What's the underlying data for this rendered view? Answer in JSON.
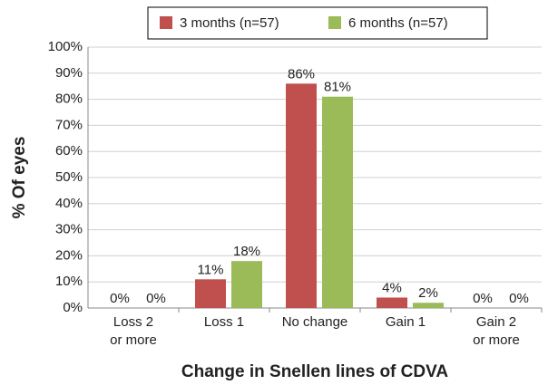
{
  "chart_data": {
    "type": "bar",
    "categories": [
      "Loss 2\nor more",
      "Loss 1",
      "No change",
      "Gain 1",
      "Gain 2\nor more"
    ],
    "series": [
      {
        "name": "3 months (n=57)",
        "color": "#c0504d",
        "values": [
          0,
          11,
          86,
          4,
          0
        ],
        "value_labels": [
          "0%",
          "11%",
          "86%",
          "4%",
          "0%"
        ]
      },
      {
        "name": "6 months (n=57)",
        "color": "#9bbb59",
        "values": [
          0,
          18,
          81,
          2,
          0
        ],
        "value_labels": [
          "0%",
          "18%",
          "81%",
          "2%",
          "0%"
        ]
      }
    ],
    "x_label": "Change in Snellen lines of CDVA",
    "y_label": "% Of eyes",
    "ylim": [
      0,
      100
    ],
    "yticks": [
      {
        "value": 0,
        "label": "0%"
      },
      {
        "value": 10,
        "label": "10%"
      },
      {
        "value": 20,
        "label": "20%"
      },
      {
        "value": 30,
        "label": "30%"
      },
      {
        "value": 40,
        "label": "40%"
      },
      {
        "value": 50,
        "label": "50%"
      },
      {
        "value": 60,
        "label": "60%"
      },
      {
        "value": 70,
        "label": "70%"
      },
      {
        "value": 80,
        "label": "80%"
      },
      {
        "value": 90,
        "label": "90%"
      },
      {
        "value": 100,
        "label": "100%"
      }
    ],
    "grid": true,
    "legend": "top"
  }
}
